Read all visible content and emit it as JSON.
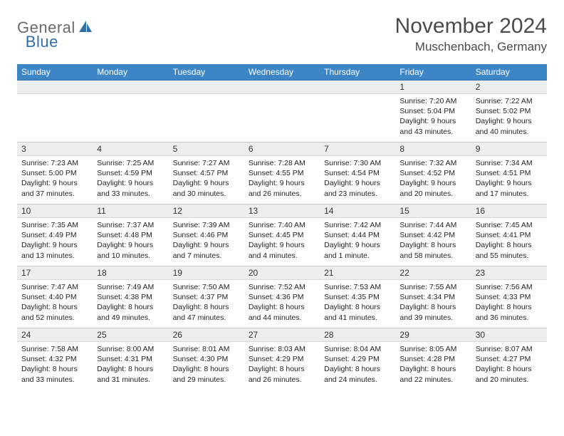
{
  "logo": {
    "word1": "General",
    "word2": "Blue"
  },
  "header": {
    "title": "November 2024",
    "location": "Muschenbach, Germany"
  },
  "dayHeaders": [
    "Sunday",
    "Monday",
    "Tuesday",
    "Wednesday",
    "Thursday",
    "Friday",
    "Saturday"
  ],
  "style": {
    "header_bg": "#3d86c6",
    "header_text": "#ffffff",
    "daynum_bg": "#eceded",
    "border": "#c9c9c9",
    "brand_blue": "#2f6fa8",
    "brand_gray": "#6a6a6a"
  },
  "weeks": [
    [
      {
        "empty": true
      },
      {
        "empty": true
      },
      {
        "empty": true
      },
      {
        "empty": true
      },
      {
        "empty": true
      },
      {
        "num": "1",
        "sunrise": "Sunrise: 7:20 AM",
        "sunset": "Sunset: 5:04 PM",
        "d1": "Daylight: 9 hours",
        "d2": "and 43 minutes."
      },
      {
        "num": "2",
        "sunrise": "Sunrise: 7:22 AM",
        "sunset": "Sunset: 5:02 PM",
        "d1": "Daylight: 9 hours",
        "d2": "and 40 minutes."
      }
    ],
    [
      {
        "num": "3",
        "sunrise": "Sunrise: 7:23 AM",
        "sunset": "Sunset: 5:00 PM",
        "d1": "Daylight: 9 hours",
        "d2": "and 37 minutes."
      },
      {
        "num": "4",
        "sunrise": "Sunrise: 7:25 AM",
        "sunset": "Sunset: 4:59 PM",
        "d1": "Daylight: 9 hours",
        "d2": "and 33 minutes."
      },
      {
        "num": "5",
        "sunrise": "Sunrise: 7:27 AM",
        "sunset": "Sunset: 4:57 PM",
        "d1": "Daylight: 9 hours",
        "d2": "and 30 minutes."
      },
      {
        "num": "6",
        "sunrise": "Sunrise: 7:28 AM",
        "sunset": "Sunset: 4:55 PM",
        "d1": "Daylight: 9 hours",
        "d2": "and 26 minutes."
      },
      {
        "num": "7",
        "sunrise": "Sunrise: 7:30 AM",
        "sunset": "Sunset: 4:54 PM",
        "d1": "Daylight: 9 hours",
        "d2": "and 23 minutes."
      },
      {
        "num": "8",
        "sunrise": "Sunrise: 7:32 AM",
        "sunset": "Sunset: 4:52 PM",
        "d1": "Daylight: 9 hours",
        "d2": "and 20 minutes."
      },
      {
        "num": "9",
        "sunrise": "Sunrise: 7:34 AM",
        "sunset": "Sunset: 4:51 PM",
        "d1": "Daylight: 9 hours",
        "d2": "and 17 minutes."
      }
    ],
    [
      {
        "num": "10",
        "sunrise": "Sunrise: 7:35 AM",
        "sunset": "Sunset: 4:49 PM",
        "d1": "Daylight: 9 hours",
        "d2": "and 13 minutes."
      },
      {
        "num": "11",
        "sunrise": "Sunrise: 7:37 AM",
        "sunset": "Sunset: 4:48 PM",
        "d1": "Daylight: 9 hours",
        "d2": "and 10 minutes."
      },
      {
        "num": "12",
        "sunrise": "Sunrise: 7:39 AM",
        "sunset": "Sunset: 4:46 PM",
        "d1": "Daylight: 9 hours",
        "d2": "and 7 minutes."
      },
      {
        "num": "13",
        "sunrise": "Sunrise: 7:40 AM",
        "sunset": "Sunset: 4:45 PM",
        "d1": "Daylight: 9 hours",
        "d2": "and 4 minutes."
      },
      {
        "num": "14",
        "sunrise": "Sunrise: 7:42 AM",
        "sunset": "Sunset: 4:44 PM",
        "d1": "Daylight: 9 hours",
        "d2": "and 1 minute."
      },
      {
        "num": "15",
        "sunrise": "Sunrise: 7:44 AM",
        "sunset": "Sunset: 4:42 PM",
        "d1": "Daylight: 8 hours",
        "d2": "and 58 minutes."
      },
      {
        "num": "16",
        "sunrise": "Sunrise: 7:45 AM",
        "sunset": "Sunset: 4:41 PM",
        "d1": "Daylight: 8 hours",
        "d2": "and 55 minutes."
      }
    ],
    [
      {
        "num": "17",
        "sunrise": "Sunrise: 7:47 AM",
        "sunset": "Sunset: 4:40 PM",
        "d1": "Daylight: 8 hours",
        "d2": "and 52 minutes."
      },
      {
        "num": "18",
        "sunrise": "Sunrise: 7:49 AM",
        "sunset": "Sunset: 4:38 PM",
        "d1": "Daylight: 8 hours",
        "d2": "and 49 minutes."
      },
      {
        "num": "19",
        "sunrise": "Sunrise: 7:50 AM",
        "sunset": "Sunset: 4:37 PM",
        "d1": "Daylight: 8 hours",
        "d2": "and 47 minutes."
      },
      {
        "num": "20",
        "sunrise": "Sunrise: 7:52 AM",
        "sunset": "Sunset: 4:36 PM",
        "d1": "Daylight: 8 hours",
        "d2": "and 44 minutes."
      },
      {
        "num": "21",
        "sunrise": "Sunrise: 7:53 AM",
        "sunset": "Sunset: 4:35 PM",
        "d1": "Daylight: 8 hours",
        "d2": "and 41 minutes."
      },
      {
        "num": "22",
        "sunrise": "Sunrise: 7:55 AM",
        "sunset": "Sunset: 4:34 PM",
        "d1": "Daylight: 8 hours",
        "d2": "and 39 minutes."
      },
      {
        "num": "23",
        "sunrise": "Sunrise: 7:56 AM",
        "sunset": "Sunset: 4:33 PM",
        "d1": "Daylight: 8 hours",
        "d2": "and 36 minutes."
      }
    ],
    [
      {
        "num": "24",
        "sunrise": "Sunrise: 7:58 AM",
        "sunset": "Sunset: 4:32 PM",
        "d1": "Daylight: 8 hours",
        "d2": "and 33 minutes."
      },
      {
        "num": "25",
        "sunrise": "Sunrise: 8:00 AM",
        "sunset": "Sunset: 4:31 PM",
        "d1": "Daylight: 8 hours",
        "d2": "and 31 minutes."
      },
      {
        "num": "26",
        "sunrise": "Sunrise: 8:01 AM",
        "sunset": "Sunset: 4:30 PM",
        "d1": "Daylight: 8 hours",
        "d2": "and 29 minutes."
      },
      {
        "num": "27",
        "sunrise": "Sunrise: 8:03 AM",
        "sunset": "Sunset: 4:29 PM",
        "d1": "Daylight: 8 hours",
        "d2": "and 26 minutes."
      },
      {
        "num": "28",
        "sunrise": "Sunrise: 8:04 AM",
        "sunset": "Sunset: 4:29 PM",
        "d1": "Daylight: 8 hours",
        "d2": "and 24 minutes."
      },
      {
        "num": "29",
        "sunrise": "Sunrise: 8:05 AM",
        "sunset": "Sunset: 4:28 PM",
        "d1": "Daylight: 8 hours",
        "d2": "and 22 minutes."
      },
      {
        "num": "30",
        "sunrise": "Sunrise: 8:07 AM",
        "sunset": "Sunset: 4:27 PM",
        "d1": "Daylight: 8 hours",
        "d2": "and 20 minutes."
      }
    ]
  ]
}
